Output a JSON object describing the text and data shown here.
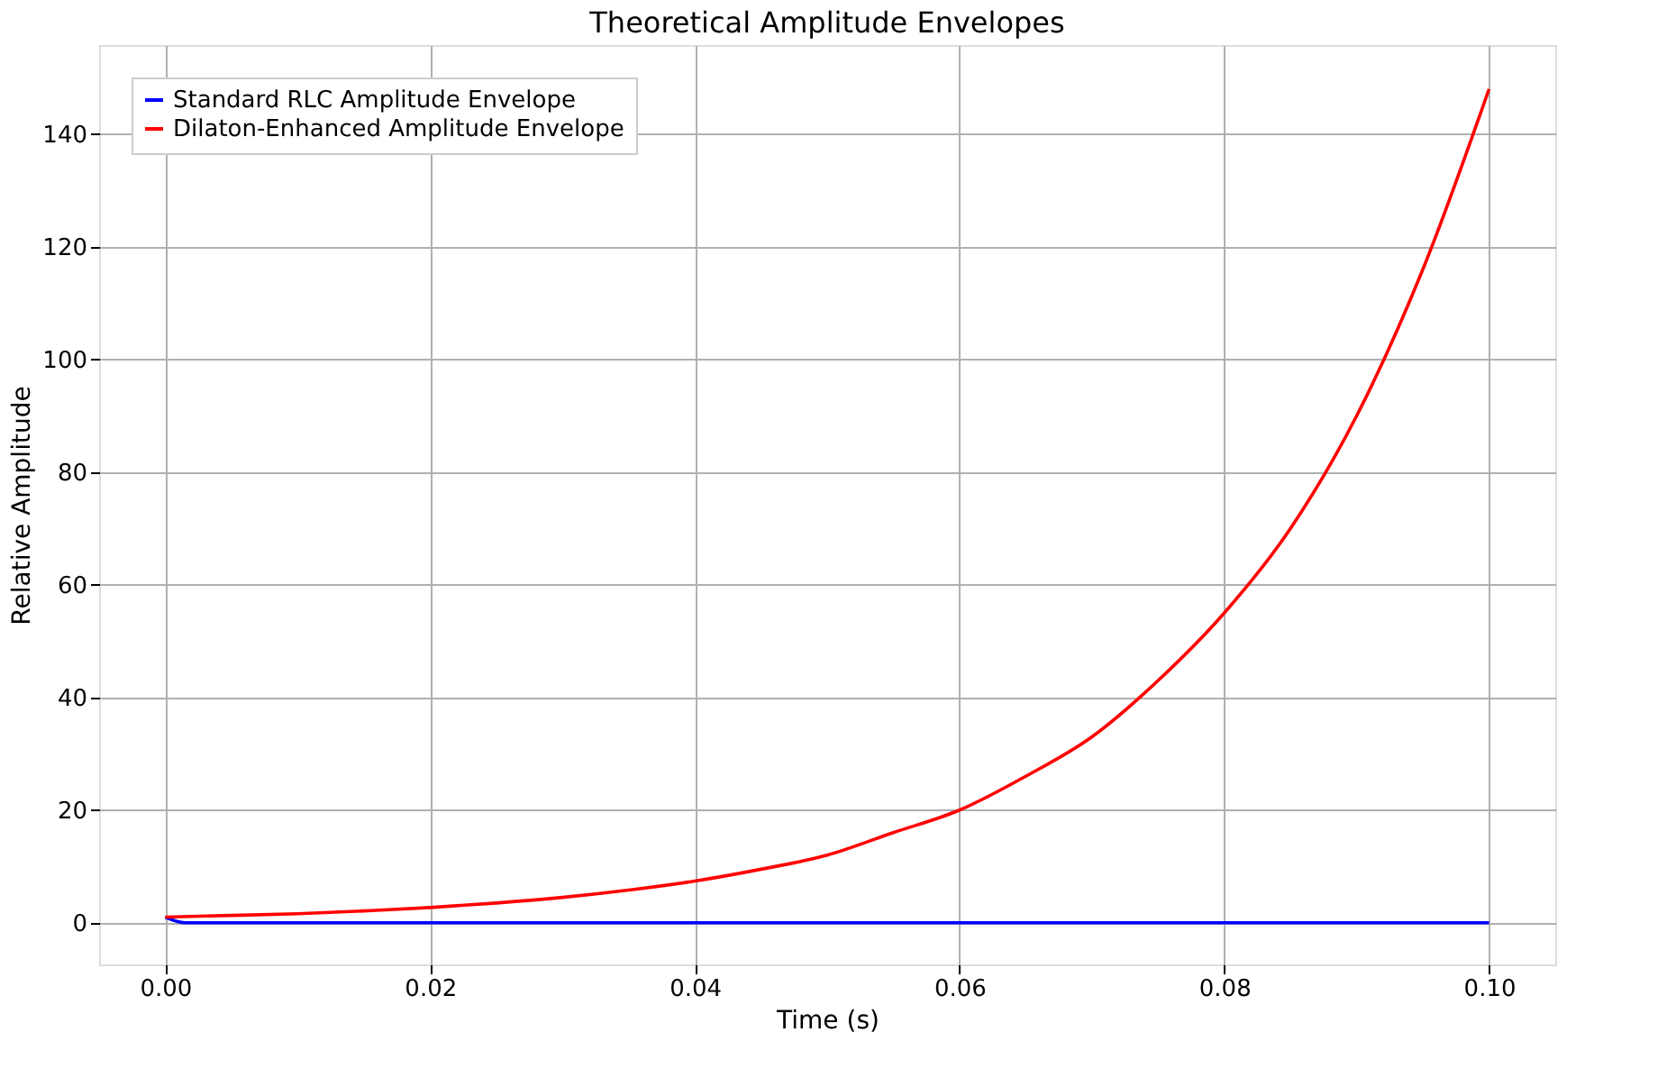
{
  "chart_data": {
    "type": "line",
    "title": "Theoretical Amplitude Envelopes",
    "xlabel": "Time (s)",
    "ylabel": "Relative Amplitude",
    "xlim": [
      -0.005,
      0.105
    ],
    "xticks": [
      {
        "value": 0,
        "label": "0.00"
      },
      {
        "value": 0.02,
        "label": "0.02"
      },
      {
        "value": 0.04,
        "label": "0.04"
      },
      {
        "value": 0.06,
        "label": "0.06"
      },
      {
        "value": 0.08,
        "label": "0.08"
      },
      {
        "value": 0.1,
        "label": "0.10"
      }
    ],
    "ylim": [
      -7.4,
      155.8
    ],
    "yticks": [
      0,
      20,
      40,
      60,
      80,
      100,
      120,
      140
    ],
    "grid": true,
    "legend": "top left",
    "line_style": "solid",
    "marker": "none",
    "series": [
      {
        "name": "Standard RLC Amplitude Envelope",
        "color": "#0000ff",
        "x": [
          0,
          0.0015,
          0.05,
          0.1
        ],
        "values": [
          1,
          0,
          0,
          0
        ]
      },
      {
        "name": "Dilaton-Enhanced Amplitude Envelope",
        "color": "#ff0000",
        "x": [
          0,
          0.005,
          0.01,
          0.015,
          0.02,
          0.025,
          0.03,
          0.035,
          0.04,
          0.045,
          0.05,
          0.055,
          0.06,
          0.065,
          0.07,
          0.075,
          0.08,
          0.085,
          0.09,
          0.095,
          0.1
        ],
        "values": [
          1,
          1.3,
          1.6,
          2.1,
          2.7,
          3.5,
          4.5,
          5.8,
          7.4,
          9.5,
          12,
          16,
          20,
          26,
          33,
          43,
          55,
          70,
          90,
          116,
          148
        ]
      }
    ]
  }
}
